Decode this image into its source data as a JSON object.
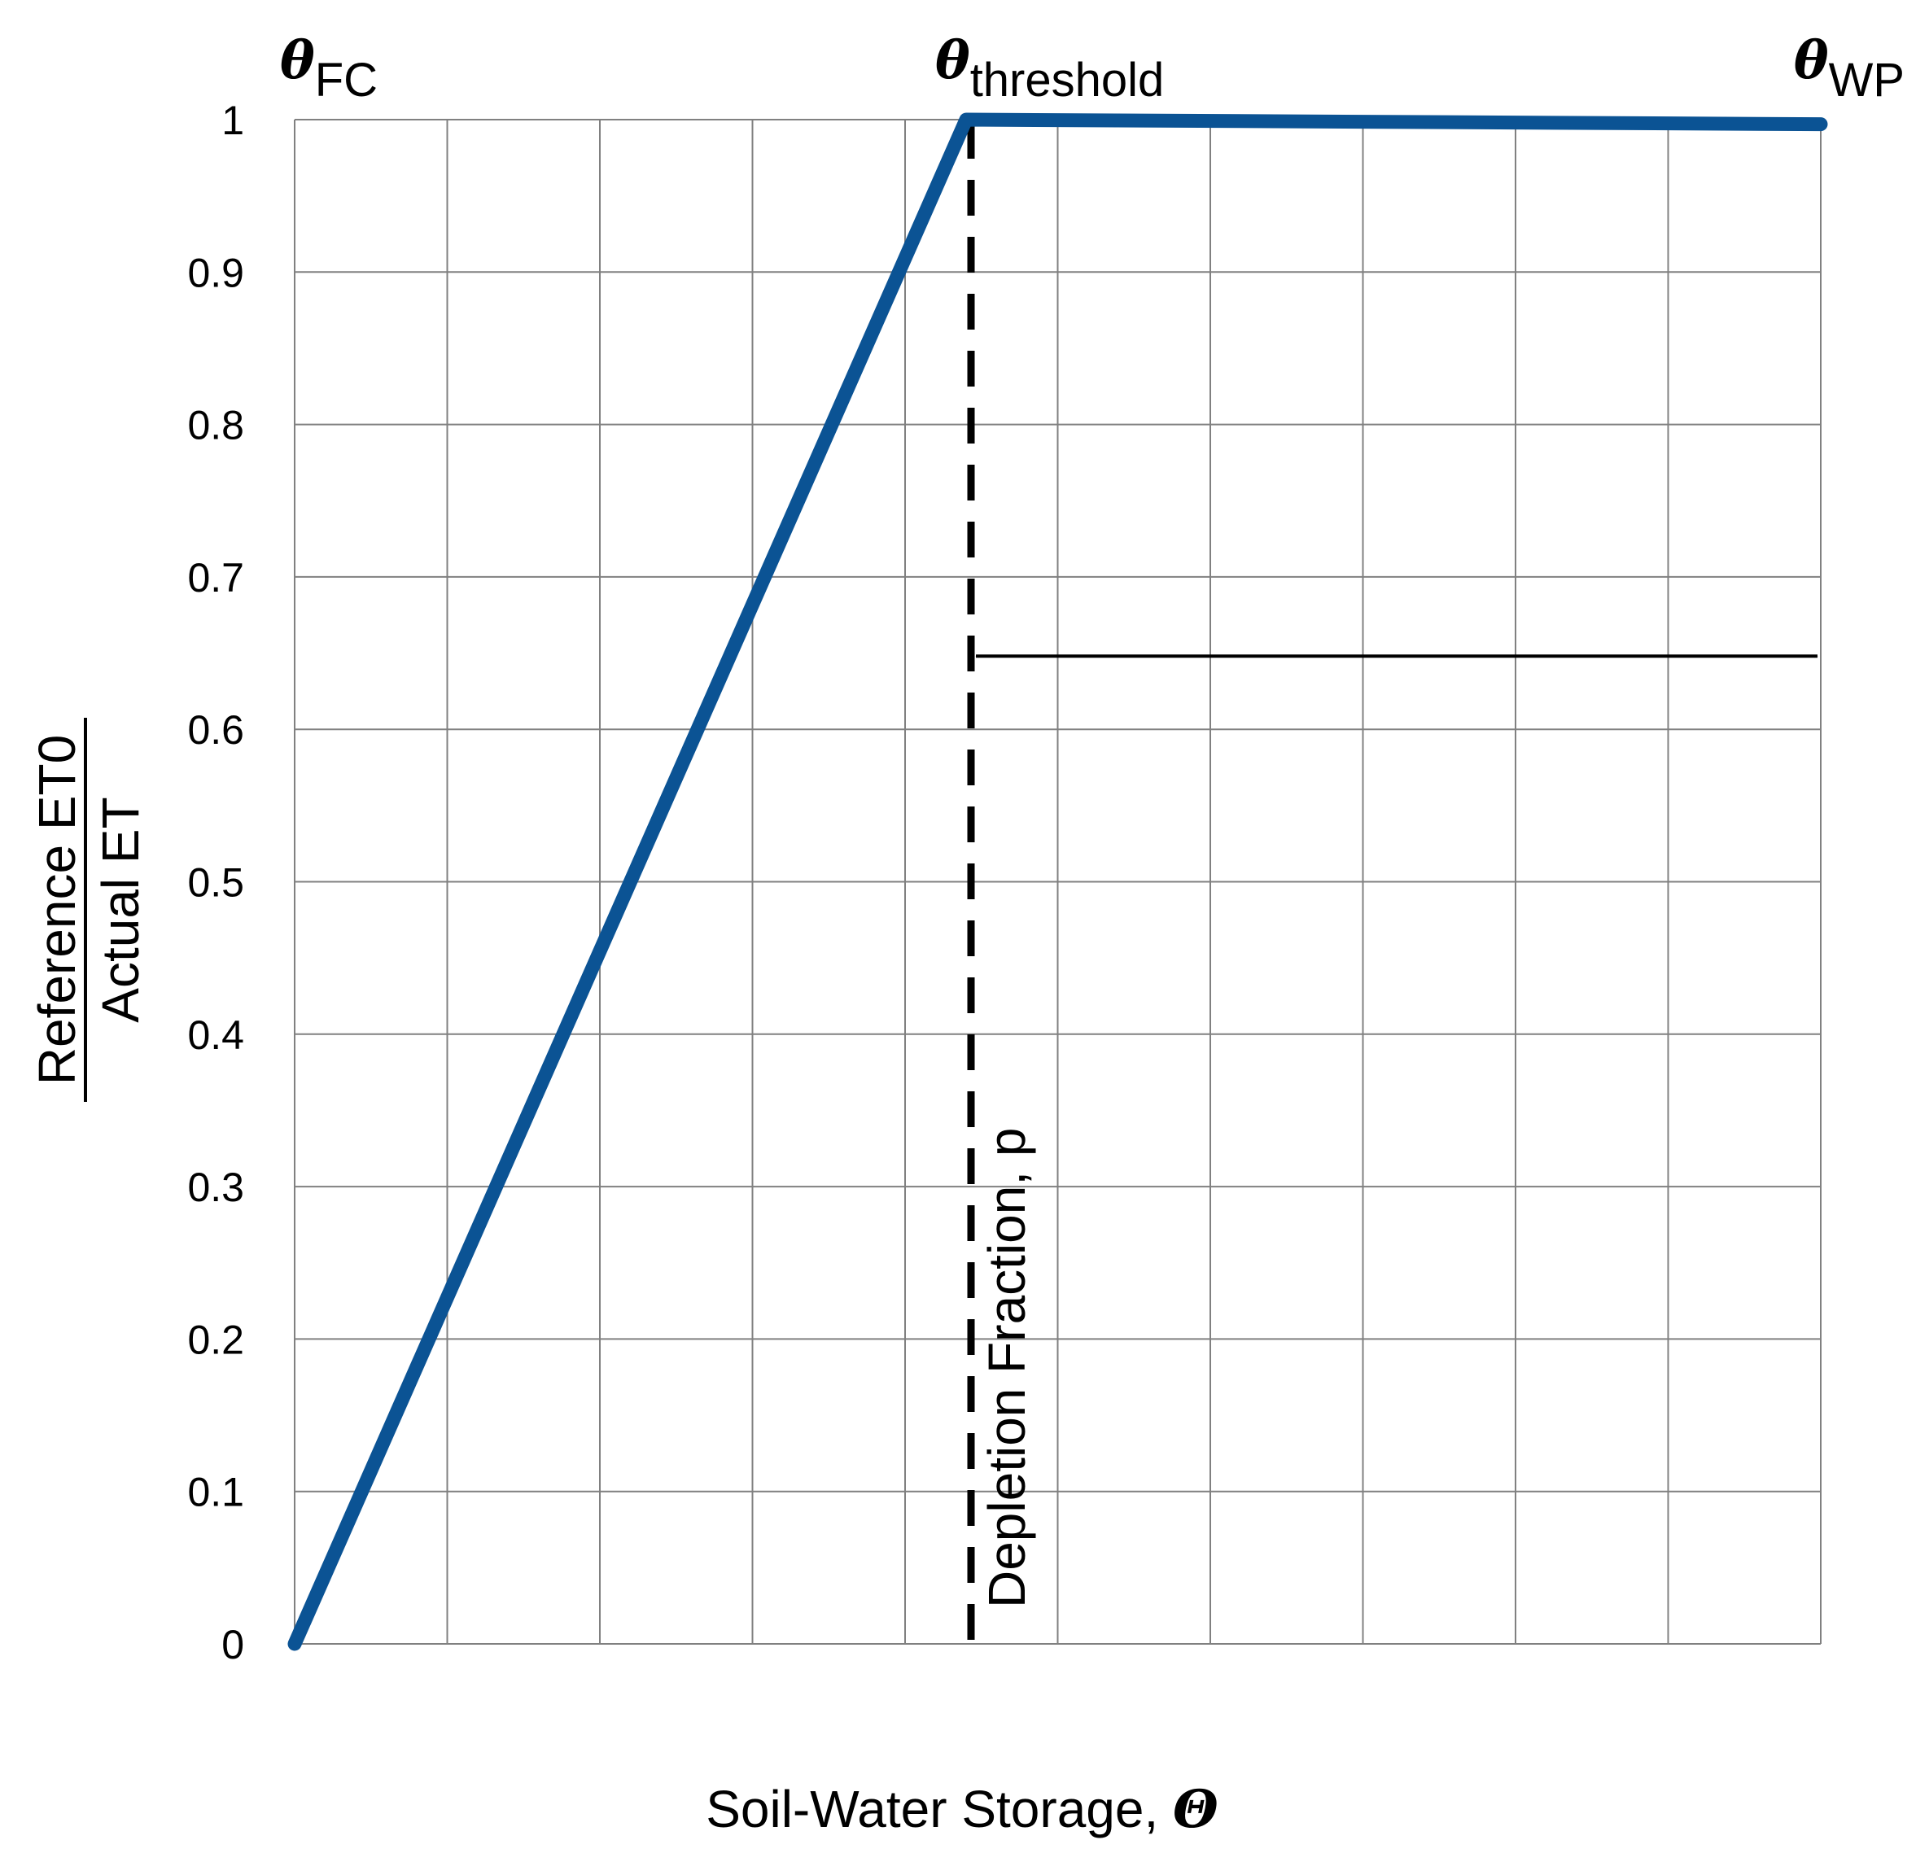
{
  "chart_data": {
    "type": "line",
    "title": "",
    "xlabel": "Soil-Water Storage, ",
    "xlabel_symbol": "Θ",
    "ylabel_numerator": "Reference ET0",
    "ylabel_denominator": "Actual ET",
    "ylim": [
      0,
      1
    ],
    "yticks": [
      "0",
      "0.1",
      "0.2",
      "0.3",
      "0.4",
      "0.5",
      "0.6",
      "0.7",
      "0.8",
      "0.9",
      "1"
    ],
    "xlim": [
      0,
      10
    ],
    "grid": true,
    "series": [
      {
        "color": "#0B5394",
        "x": [
          0,
          4.4,
          10
        ],
        "y": [
          0,
          1.0,
          0.997
        ]
      }
    ],
    "markers": {
      "fc": {
        "symbol": "θ",
        "sub": "FC",
        "x": 0
      },
      "threshold": {
        "symbol": "θ",
        "sub": "threshold",
        "x": 4.4
      },
      "wp": {
        "symbol": "θ",
        "sub": "WP",
        "x": 10
      }
    },
    "threshold_line": {
      "x": 4.4,
      "style": "dashed"
    },
    "depletion_arrow": {
      "y": 0.648,
      "x_from": 4.4,
      "x_to": 10,
      "label": "Depletion Fraction, p"
    }
  }
}
